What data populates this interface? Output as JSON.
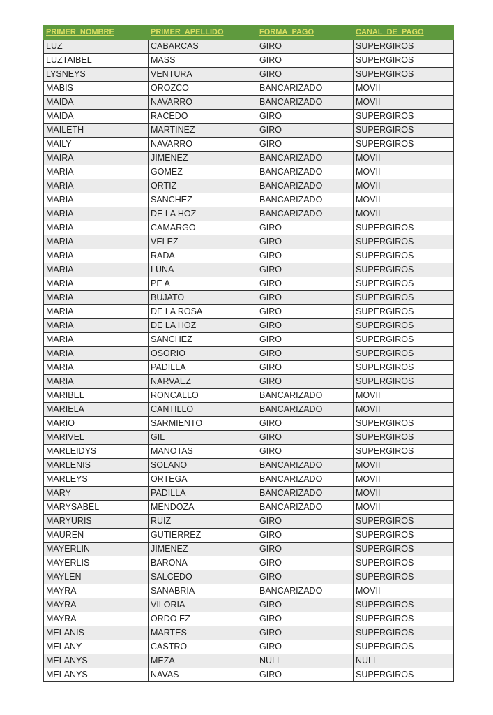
{
  "headers": [
    "PRIMER_NOMBRE",
    "PRIMER_APELLIDO",
    "FORMA_PAGO",
    "CANAL_DE_PAGO"
  ],
  "colors": {
    "header_bg": "#5f9a3e",
    "header_text": "#d9df63"
  },
  "rows": [
    [
      "LUZ",
      "CABARCAS",
      "GIRO",
      "SUPERGIROS"
    ],
    [
      "LUZTAIBEL",
      "MASS",
      "GIRO",
      "SUPERGIROS"
    ],
    [
      "LYSNEYS",
      "VENTURA",
      "GIRO",
      "SUPERGIROS"
    ],
    [
      "MABIS",
      "OROZCO",
      "BANCARIZADO",
      "MOVII"
    ],
    [
      "MAIDA",
      "NAVARRO",
      "BANCARIZADO",
      "MOVII"
    ],
    [
      "MAIDA",
      "RACEDO",
      "GIRO",
      "SUPERGIROS"
    ],
    [
      "MAILETH",
      "MARTINEZ",
      "GIRO",
      "SUPERGIROS"
    ],
    [
      "MAILY",
      "NAVARRO",
      "GIRO",
      "SUPERGIROS"
    ],
    [
      "MAIRA",
      "JIMENEZ",
      "BANCARIZADO",
      "MOVII"
    ],
    [
      "MARIA",
      "GOMEZ",
      "BANCARIZADO",
      "MOVII"
    ],
    [
      "MARIA",
      "ORTIZ",
      "BANCARIZADO",
      "MOVII"
    ],
    [
      "MARIA",
      "SANCHEZ",
      "BANCARIZADO",
      "MOVII"
    ],
    [
      "MARIA",
      "DE LA HOZ",
      "BANCARIZADO",
      "MOVII"
    ],
    [
      "MARIA",
      "CAMARGO",
      "GIRO",
      "SUPERGIROS"
    ],
    [
      "MARIA",
      "VELEZ",
      "GIRO",
      "SUPERGIROS"
    ],
    [
      "MARIA",
      "RADA",
      "GIRO",
      "SUPERGIROS"
    ],
    [
      "MARIA",
      "LUNA",
      "GIRO",
      "SUPERGIROS"
    ],
    [
      "MARIA",
      "PE A",
      "GIRO",
      "SUPERGIROS"
    ],
    [
      "MARIA",
      "BUJATO",
      "GIRO",
      "SUPERGIROS"
    ],
    [
      "MARIA",
      "DE LA ROSA",
      "GIRO",
      "SUPERGIROS"
    ],
    [
      "MARIA",
      "DE LA HOZ",
      "GIRO",
      "SUPERGIROS"
    ],
    [
      "MARIA",
      "SANCHEZ",
      "GIRO",
      "SUPERGIROS"
    ],
    [
      "MARIA",
      "OSORIO",
      "GIRO",
      "SUPERGIROS"
    ],
    [
      "MARIA",
      "PADILLA",
      "GIRO",
      "SUPERGIROS"
    ],
    [
      "MARIA",
      "NARVAEZ",
      "GIRO",
      "SUPERGIROS"
    ],
    [
      "MARIBEL",
      "RONCALLO",
      "BANCARIZADO",
      "MOVII"
    ],
    [
      "MARIELA",
      "CANTILLO",
      "BANCARIZADO",
      "MOVII"
    ],
    [
      "MARIO",
      "SARMIENTO",
      "GIRO",
      "SUPERGIROS"
    ],
    [
      "MARIVEL",
      "GIL",
      "GIRO",
      "SUPERGIROS"
    ],
    [
      "MARLEIDYS",
      "MANOTAS",
      "GIRO",
      "SUPERGIROS"
    ],
    [
      "MARLENIS",
      "SOLANO",
      "BANCARIZADO",
      "MOVII"
    ],
    [
      "MARLEYS",
      "ORTEGA",
      "BANCARIZADO",
      "MOVII"
    ],
    [
      "MARY",
      "PADILLA",
      "BANCARIZADO",
      "MOVII"
    ],
    [
      "MARYSABEL",
      "MENDOZA",
      "BANCARIZADO",
      "MOVII"
    ],
    [
      "MARYURIS",
      "RUIZ",
      "GIRO",
      "SUPERGIROS"
    ],
    [
      "MAUREN",
      "GUTIERREZ",
      "GIRO",
      "SUPERGIROS"
    ],
    [
      "MAYERLIN",
      "JIMENEZ",
      "GIRO",
      "SUPERGIROS"
    ],
    [
      "MAYERLIS",
      "BARONA",
      "GIRO",
      "SUPERGIROS"
    ],
    [
      "MAYLEN",
      "SALCEDO",
      "GIRO",
      "SUPERGIROS"
    ],
    [
      "MAYRA",
      "SANABRIA",
      "BANCARIZADO",
      "MOVII"
    ],
    [
      "MAYRA",
      "VILORIA",
      "GIRO",
      "SUPERGIROS"
    ],
    [
      "MAYRA",
      "ORDO EZ",
      "GIRO",
      "SUPERGIROS"
    ],
    [
      "MELANIS",
      "MARTES",
      "GIRO",
      "SUPERGIROS"
    ],
    [
      "MELANY",
      "CASTRO",
      "GIRO",
      "SUPERGIROS"
    ],
    [
      "MELANYS",
      "MEZA",
      "NULL",
      "NULL"
    ],
    [
      "MELANYS",
      "NAVAS",
      "GIRO",
      "SUPERGIROS"
    ]
  ]
}
